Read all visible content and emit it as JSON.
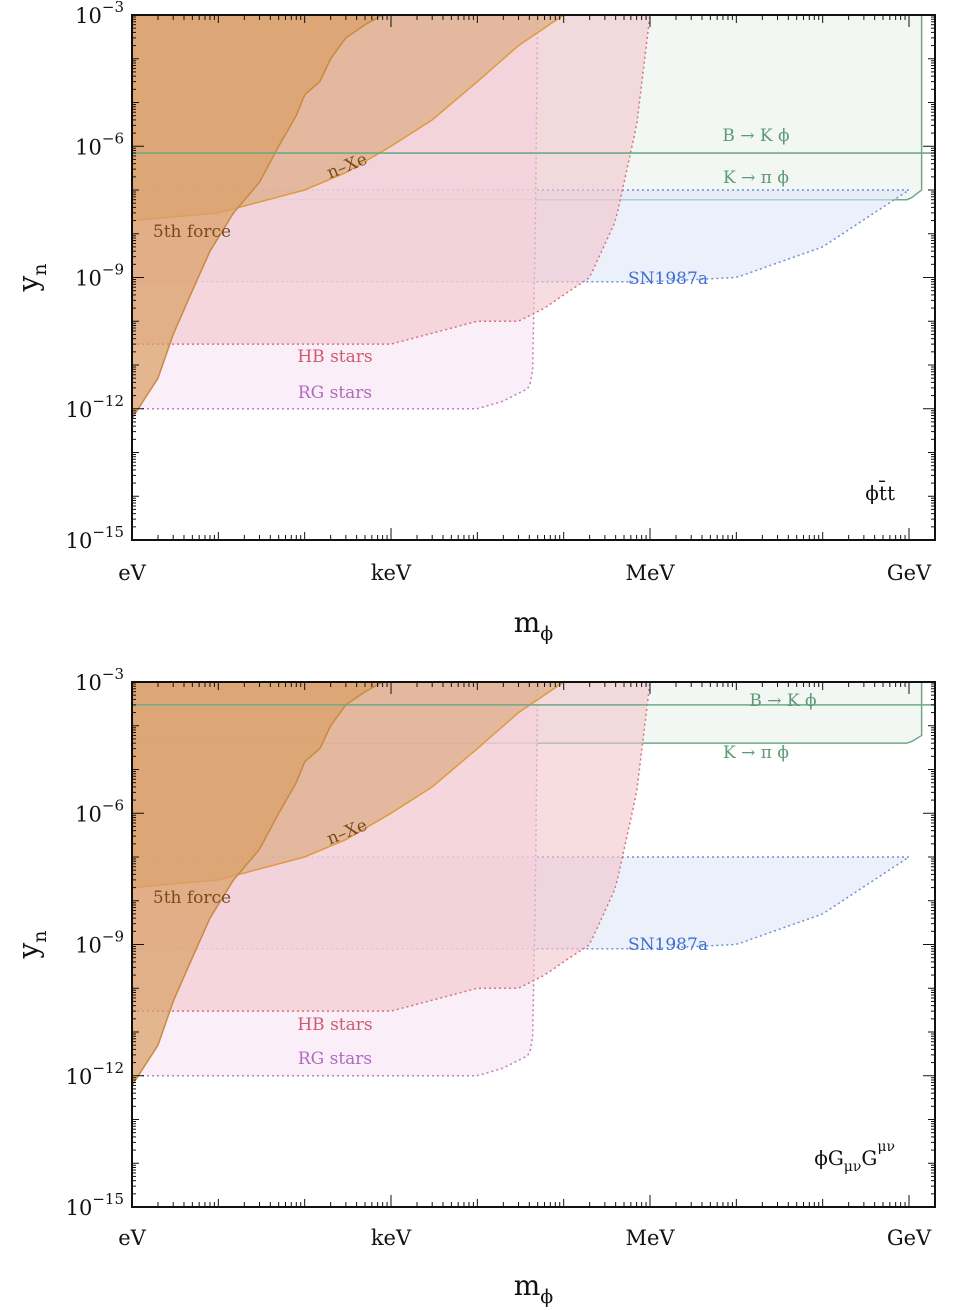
{
  "chart_data": [
    {
      "type": "area",
      "panel": "top",
      "xlabel": "m",
      "xlabel_sub": "ϕ",
      "ylabel": "y",
      "ylabel_sub": "n",
      "xscale": "log",
      "yscale": "log",
      "xlim_eV": [
        1,
        2000000000
      ],
      "ylim": [
        1e-15,
        0.001
      ],
      "x_ticks": [
        {
          "label": "eV",
          "value": 1
        },
        {
          "label": "keV",
          "value": 1000
        },
        {
          "label": "MeV",
          "value": 1000000
        },
        {
          "label": "GeV",
          "value": 1000000000
        }
      ],
      "y_ticks": [
        {
          "base": "10",
          "exp": "−3",
          "value": 0.001
        },
        {
          "base": "10",
          "exp": "−6",
          "value": 1e-06
        },
        {
          "base": "10",
          "exp": "−9",
          "value": 1e-09
        },
        {
          "base": "10",
          "exp": "−12",
          "value": 1e-12
        },
        {
          "base": "10",
          "exp": "−15",
          "value": 1e-15
        }
      ],
      "model_label": "ϕt̄t",
      "model_label_parts": [
        {
          "t": "ϕt̄t",
          "sup": false,
          "sub": false
        }
      ],
      "series": [
        {
          "name": "5th force",
          "style": "filled-solid",
          "fill": "#d9a066",
          "stroke": "#c98a3c",
          "x": [
            1,
            2,
            3,
            5,
            8,
            15,
            30,
            50,
            80,
            100,
            150,
            200,
            300,
            500,
            800,
            1000
          ],
          "y": [
            6e-13,
            5e-12,
            5e-11,
            5e-10,
            4e-09,
            3e-08,
            1.5e-07,
            1e-06,
            5e-06,
            1.5e-05,
            3e-05,
            0.0001,
            0.0003,
            0.0006,
            0.001,
            0.001
          ]
        },
        {
          "name": "n–Xe",
          "style": "filled-solid",
          "fill": "#d9a679",
          "stroke": "#e09a3a",
          "x": [
            1,
            10,
            100,
            300,
            1000,
            3000,
            10000,
            30000,
            100000
          ],
          "y": [
            2e-08,
            3e-08,
            1e-07,
            2.5e-07,
            1e-06,
            4e-06,
            3e-05,
            0.0002,
            0.001
          ]
        },
        {
          "name": "HB stars",
          "style": "filled-dotted",
          "fill": "#f2c4cc",
          "stroke": "#d9707f",
          "x": [
            1,
            100,
            1000,
            10000,
            30000,
            60000,
            100000,
            200000,
            400000,
            700000,
            1000000
          ],
          "y": [
            3e-11,
            3e-11,
            3e-11,
            1e-10,
            1e-10,
            2e-10,
            4e-10,
            1e-09,
            2e-08,
            3e-06,
            0.001
          ]
        },
        {
          "name": "RG stars",
          "style": "filled-dotted",
          "fill": "#f6e4f4",
          "stroke": "#c07cc8",
          "x": [
            1,
            1000,
            10000,
            20000,
            40000,
            45000,
            50000
          ],
          "y": [
            1e-12,
            1e-12,
            1e-12,
            1.5e-12,
            3e-12,
            1e-11,
            0.001
          ]
        },
        {
          "name": "SN1987a",
          "style": "filled-dotted",
          "fill": "#dde6f6",
          "stroke": "#6f8fd6",
          "x": [
            1,
            1000000,
            10000000,
            100000000,
            1000000000
          ],
          "y_low": [
            8e-10,
            8e-10,
            1e-09,
            5e-09,
            1e-07
          ],
          "y_high": [
            1e-07,
            1e-07,
            1e-07,
            1e-07,
            1e-07
          ]
        },
        {
          "name": "K → π ϕ",
          "style": "filled-solid",
          "fill": "#e9f2ec",
          "stroke": "#6fa886",
          "x": [
            1,
            1000000000,
            1400000000
          ],
          "y_low": [
            6e-08,
            6e-08,
            1e-07
          ],
          "y_high": [
            0.001,
            0.001,
            0.001
          ]
        },
        {
          "name": "B → K ϕ",
          "style": "line",
          "stroke": "#6fa886",
          "x": [
            1,
            2000000000
          ],
          "y": [
            7e-07,
            7e-07
          ]
        }
      ]
    },
    {
      "type": "area",
      "panel": "bottom",
      "xlabel": "m",
      "xlabel_sub": "ϕ",
      "ylabel": "y",
      "ylabel_sub": "n",
      "xscale": "log",
      "yscale": "log",
      "xlim_eV": [
        1,
        2000000000
      ],
      "ylim": [
        1e-15,
        0.001
      ],
      "x_ticks": [
        {
          "label": "eV",
          "value": 1
        },
        {
          "label": "keV",
          "value": 1000
        },
        {
          "label": "MeV",
          "value": 1000000
        },
        {
          "label": "GeV",
          "value": 1000000000
        }
      ],
      "y_ticks": [
        {
          "base": "10",
          "exp": "−3",
          "value": 0.001
        },
        {
          "base": "10",
          "exp": "−6",
          "value": 1e-06
        },
        {
          "base": "10",
          "exp": "−9",
          "value": 1e-09
        },
        {
          "base": "10",
          "exp": "−12",
          "value": 1e-12
        },
        {
          "base": "10",
          "exp": "−15",
          "value": 1e-15
        }
      ],
      "model_label": "ϕGμνGμν",
      "model_label_parts": [
        {
          "t": "ϕG",
          "sup": false,
          "sub": false
        },
        {
          "t": "μν",
          "sup": false,
          "sub": true
        },
        {
          "t": "G",
          "sup": false,
          "sub": false
        },
        {
          "t": "μν",
          "sup": true,
          "sub": false
        }
      ],
      "series": [
        {
          "name": "5th force",
          "style": "filled-solid",
          "fill": "#d9a066",
          "stroke": "#c98a3c",
          "x": [
            1,
            2,
            3,
            5,
            8,
            15,
            30,
            50,
            80,
            100,
            150,
            200,
            300,
            500,
            800,
            1000
          ],
          "y": [
            6e-13,
            5e-12,
            5e-11,
            5e-10,
            4e-09,
            3e-08,
            1.5e-07,
            1e-06,
            5e-06,
            1.5e-05,
            3e-05,
            0.0001,
            0.0003,
            0.0006,
            0.001,
            0.001
          ]
        },
        {
          "name": "n–Xe",
          "style": "filled-solid",
          "fill": "#d9a679",
          "stroke": "#e09a3a",
          "x": [
            1,
            10,
            100,
            300,
            1000,
            3000,
            10000,
            30000,
            100000
          ],
          "y": [
            2e-08,
            3e-08,
            1e-07,
            2.5e-07,
            1e-06,
            4e-06,
            3e-05,
            0.0002,
            0.001
          ]
        },
        {
          "name": "HB stars",
          "style": "filled-dotted",
          "fill": "#f2c4cc",
          "stroke": "#d9707f",
          "x": [
            1,
            100,
            1000,
            10000,
            30000,
            60000,
            100000,
            200000,
            400000,
            700000,
            1000000
          ],
          "y": [
            3e-11,
            3e-11,
            3e-11,
            1e-10,
            1e-10,
            2e-10,
            4e-10,
            1e-09,
            2e-08,
            3e-06,
            0.001
          ]
        },
        {
          "name": "RG stars",
          "style": "filled-dotted",
          "fill": "#f6e4f4",
          "stroke": "#c07cc8",
          "x": [
            1,
            1000,
            10000,
            20000,
            40000,
            45000,
            50000
          ],
          "y": [
            1e-12,
            1e-12,
            1e-12,
            1.5e-12,
            3e-12,
            1e-11,
            0.001
          ]
        },
        {
          "name": "SN1987a",
          "style": "filled-dotted",
          "fill": "#dde6f6",
          "stroke": "#6f8fd6",
          "x": [
            1,
            1000000,
            10000000,
            100000000,
            1000000000
          ],
          "y_low": [
            8e-10,
            8e-10,
            1e-09,
            5e-09,
            1e-07
          ],
          "y_high": [
            1e-07,
            1e-07,
            1e-07,
            1e-07,
            1e-07
          ]
        },
        {
          "name": "K → π ϕ",
          "style": "filled-solid",
          "fill": "#e9f2ec",
          "stroke": "#6fa886",
          "x": [
            1,
            1000000000,
            1400000000
          ],
          "y_low": [
            4e-05,
            4e-05,
            6e-05
          ],
          "y_high": [
            0.001,
            0.001,
            0.001
          ]
        },
        {
          "name": "B → K ϕ",
          "style": "line",
          "stroke": "#6fa886",
          "x": [
            1,
            2000000000
          ],
          "y": [
            0.0003,
            0.0003
          ]
        }
      ]
    }
  ],
  "label_colors": {
    "5th force": "#7a4a1a",
    "n–Xe": "#7a4a1a",
    "HB stars": "#d05a6e",
    "RG stars": "#b06ac0",
    "SN1987a": "#3f6fd0",
    "K → π ϕ": "#5c9a76",
    "B → K ϕ": "#5c9a76"
  }
}
